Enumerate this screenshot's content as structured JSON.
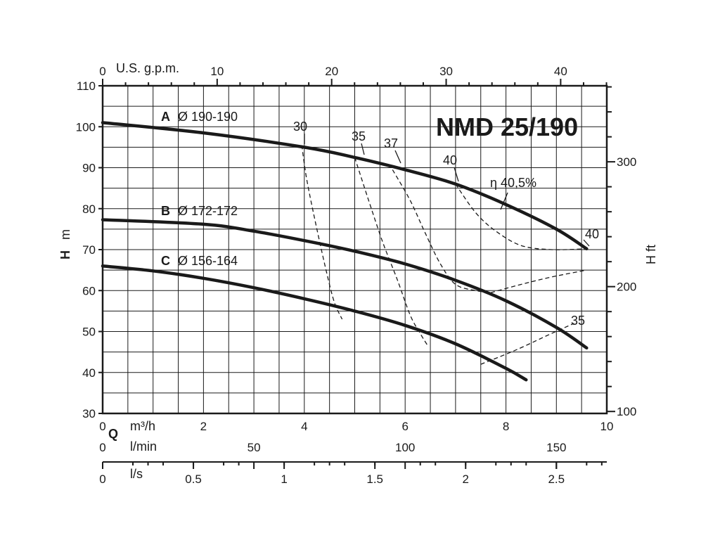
{
  "chart_data": {
    "type": "line",
    "title": "NMD 25/190",
    "ylabel_main": "H",
    "ylabel_unit": "m",
    "ylabel_right": "H ft",
    "xlabel_main": "Q",
    "x_unit_m3h": "m³/h",
    "x_unit_lmin": "l/min",
    "x_unit_ls": "l/s",
    "x_unit_gpm": "U.S. g.p.m.",
    "xlim": [
      0,
      10
    ],
    "ylim": [
      30,
      110
    ],
    "xticks": [
      0,
      2,
      4,
      6,
      8,
      10
    ],
    "yticks": [
      30,
      40,
      50,
      60,
      70,
      80,
      90,
      100,
      110
    ],
    "gpm_ticks": [
      0,
      10,
      20,
      30,
      40
    ],
    "lmin_ticks": [
      0,
      50,
      100,
      150
    ],
    "ls_ticks": [
      "0",
      "0.5",
      "1",
      "1.5",
      "2",
      "2.5"
    ],
    "ft_ticks": [
      "100",
      "200",
      "300"
    ],
    "grid": true,
    "series": [
      {
        "name": "A",
        "label": "Ø 190-190",
        "x": [
          0,
          2,
          4,
          5,
          6,
          7,
          8,
          9,
          9.6
        ],
        "y": [
          101,
          98.5,
          95,
          92.5,
          89.5,
          86,
          81,
          75,
          70.2
        ]
      },
      {
        "name": "B",
        "label": "Ø 172-172",
        "x": [
          0,
          2,
          3,
          4,
          5,
          6,
          7,
          8,
          9,
          9.6
        ],
        "y": [
          77.3,
          76.2,
          74.5,
          72.2,
          69.6,
          66.5,
          62.5,
          57.5,
          51,
          46
        ]
      },
      {
        "name": "C",
        "label": "Ø 156-164",
        "x": [
          0,
          1,
          2,
          3,
          4,
          5,
          6,
          7,
          8,
          8.4
        ],
        "y": [
          66,
          64.8,
          63,
          60.7,
          58,
          55,
          51.5,
          47,
          41,
          38.2
        ]
      }
    ],
    "efficiency_curves": [
      {
        "label": "30",
        "x": [
          3.95,
          4.05,
          4.25,
          4.45,
          4.6,
          4.75
        ],
        "y": [
          95.5,
          87,
          75,
          64,
          57,
          53
        ]
      },
      {
        "label": "35",
        "x": [
          5.0,
          5.25,
          5.55,
          5.85,
          6.1,
          6.3,
          6.45
        ],
        "y": [
          92.5,
          83,
          72,
          62.5,
          54,
          49.5,
          46.5
        ]
      },
      {
        "label": "37",
        "x": [
          5.75,
          6.1,
          6.4,
          6.7,
          7.0,
          7.4,
          7.7
        ],
        "y": [
          89.5,
          82,
          74,
          66.5,
          61.5,
          60,
          59.5
        ]
      },
      {
        "label": "40",
        "x": [
          7.0,
          7.4,
          7.8,
          8.3,
          8.9,
          9.6
        ],
        "y": [
          86,
          79,
          74.5,
          71,
          70,
          70.2
        ]
      },
      {
        "label": "35",
        "x": [
          7.7,
          8.3,
          8.9,
          9.6
        ],
        "y": [
          59.5,
          61.5,
          63.3,
          65
        ]
      },
      {
        "label": "35",
        "x": [
          7.5,
          8.2,
          8.9,
          9.35
        ],
        "y": [
          42,
          45.5,
          49.5,
          52
        ]
      }
    ],
    "annotations": {
      "eff_30": "30",
      "eff_35_top": "35",
      "eff_37": "37",
      "eff_40_top": "40",
      "eta_peak": "η 40,5%",
      "eff_40_right": "40",
      "eff_35_right": "35",
      "curve_A_letter": "A",
      "curve_A_label": "Ø 190-190",
      "curve_B_letter": "B",
      "curve_B_label": "Ø 172-172",
      "curve_C_letter": "C",
      "curve_C_label": "Ø 156-164"
    }
  }
}
